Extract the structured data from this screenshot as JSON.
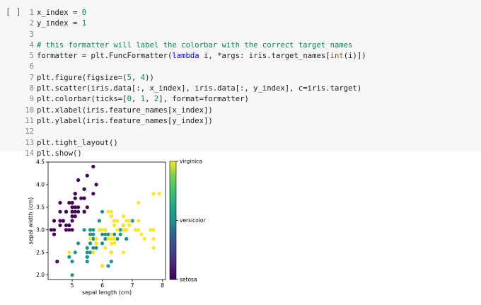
{
  "cell": {
    "run_button_label": "[ ]",
    "lines": [
      {
        "n": "1",
        "parts": [
          {
            "t": "x_index = "
          },
          {
            "t": "0",
            "c": "num"
          }
        ]
      },
      {
        "n": "2",
        "parts": [
          {
            "t": "y_index = "
          },
          {
            "t": "1",
            "c": "num"
          }
        ]
      },
      {
        "n": "3",
        "parts": []
      },
      {
        "n": "4",
        "parts": [
          {
            "t": "# this formatter will label the colorbar with the correct target names",
            "c": "cm"
          }
        ]
      },
      {
        "n": "5",
        "parts": [
          {
            "t": "formatter = plt.FuncFormatter("
          },
          {
            "t": "lambda",
            "c": "kw"
          },
          {
            "t": " i, *args: iris.target_names["
          },
          {
            "t": "int",
            "c": "fn"
          },
          {
            "t": "(i)])"
          }
        ]
      },
      {
        "n": "6",
        "parts": []
      },
      {
        "n": "7",
        "parts": [
          {
            "t": "plt.figure(figsize=("
          },
          {
            "t": "5",
            "c": "num"
          },
          {
            "t": ", "
          },
          {
            "t": "4",
            "c": "num"
          },
          {
            "t": "))"
          }
        ]
      },
      {
        "n": "8",
        "parts": [
          {
            "t": "plt.scatter(iris.data[:, x_index], iris.data[:, y_index], c=iris.target)"
          }
        ]
      },
      {
        "n": "9",
        "parts": [
          {
            "t": "plt.colorbar(ticks=["
          },
          {
            "t": "0",
            "c": "num"
          },
          {
            "t": ", "
          },
          {
            "t": "1",
            "c": "num"
          },
          {
            "t": ", "
          },
          {
            "t": "2",
            "c": "num"
          },
          {
            "t": "], format=formatter)"
          }
        ]
      },
      {
        "n": "10",
        "parts": [
          {
            "t": "plt.xlabel(iris.feature_names[x_index])"
          }
        ]
      },
      {
        "n": "11",
        "parts": [
          {
            "t": "plt.ylabel(iris.feature_names[y_index])"
          }
        ]
      },
      {
        "n": "12",
        "parts": []
      },
      {
        "n": "13",
        "parts": [
          {
            "t": "plt.tight_layout()"
          }
        ]
      },
      {
        "n": "14",
        "parts": [
          {
            "t": "plt.show()"
          }
        ]
      }
    ]
  },
  "colors": {
    "setosa": "#440154",
    "versicolor": "#21918c",
    "virginica": "#fde725"
  },
  "chart_data": {
    "type": "scatter",
    "xlabel": "sepal length (cm)",
    "ylabel": "sepal width (cm)",
    "xlim": [
      4.2,
      8.1
    ],
    "ylim": [
      1.9,
      4.5
    ],
    "xticks": [
      "5",
      "6",
      "7",
      "8"
    ],
    "xtick_values": [
      5,
      6,
      7,
      8
    ],
    "yticks": [
      "2.0",
      "2.5",
      "3.0",
      "3.5",
      "4.0",
      "4.5"
    ],
    "ytick_values": [
      2.0,
      2.5,
      3.0,
      3.5,
      4.0,
      4.5
    ],
    "colorbar": {
      "ticks": [
        0,
        1,
        2
      ],
      "labels": [
        "setosa",
        "versicolor",
        "virginica"
      ]
    },
    "series": [
      {
        "name": "setosa",
        "class": 0,
        "points": [
          [
            5.1,
            3.5
          ],
          [
            4.9,
            3.0
          ],
          [
            4.7,
            3.2
          ],
          [
            4.6,
            3.1
          ],
          [
            5.0,
            3.6
          ],
          [
            5.4,
            3.9
          ],
          [
            4.6,
            3.4
          ],
          [
            5.0,
            3.4
          ],
          [
            4.4,
            2.9
          ],
          [
            4.9,
            3.1
          ],
          [
            5.4,
            3.7
          ],
          [
            4.8,
            3.4
          ],
          [
            4.8,
            3.0
          ],
          [
            4.3,
            3.0
          ],
          [
            5.8,
            4.0
          ],
          [
            5.7,
            4.4
          ],
          [
            5.4,
            3.9
          ],
          [
            5.1,
            3.5
          ],
          [
            5.7,
            3.8
          ],
          [
            5.1,
            3.8
          ],
          [
            5.4,
            3.4
          ],
          [
            5.1,
            3.7
          ],
          [
            4.6,
            3.6
          ],
          [
            5.1,
            3.3
          ],
          [
            4.8,
            3.4
          ],
          [
            5.0,
            3.0
          ],
          [
            5.0,
            3.4
          ],
          [
            5.2,
            3.5
          ],
          [
            5.2,
            3.4
          ],
          [
            4.7,
            3.2
          ],
          [
            4.8,
            3.1
          ],
          [
            5.4,
            3.4
          ],
          [
            5.2,
            4.1
          ],
          [
            5.5,
            4.2
          ],
          [
            4.9,
            3.1
          ],
          [
            5.0,
            3.2
          ],
          [
            5.5,
            3.5
          ],
          [
            4.9,
            3.6
          ],
          [
            4.4,
            3.0
          ],
          [
            5.1,
            3.4
          ],
          [
            5.0,
            3.5
          ],
          [
            4.5,
            2.3
          ],
          [
            4.4,
            3.2
          ],
          [
            5.0,
            3.5
          ],
          [
            5.1,
            3.8
          ],
          [
            4.8,
            3.0
          ],
          [
            5.1,
            3.8
          ],
          [
            4.6,
            3.2
          ],
          [
            5.3,
            3.7
          ],
          [
            5.0,
            3.3
          ]
        ]
      },
      {
        "name": "versicolor",
        "class": 1,
        "points": [
          [
            7.0,
            3.2
          ],
          [
            6.4,
            3.2
          ],
          [
            6.9,
            3.1
          ],
          [
            5.5,
            2.3
          ],
          [
            6.5,
            2.8
          ],
          [
            5.7,
            2.8
          ],
          [
            6.3,
            3.3
          ],
          [
            4.9,
            2.4
          ],
          [
            6.6,
            2.9
          ],
          [
            5.2,
            2.7
          ],
          [
            5.0,
            2.0
          ],
          [
            5.9,
            3.0
          ],
          [
            6.0,
            2.2
          ],
          [
            6.1,
            2.9
          ],
          [
            5.6,
            2.9
          ],
          [
            6.7,
            3.1
          ],
          [
            5.6,
            3.0
          ],
          [
            5.8,
            2.7
          ],
          [
            6.2,
            2.2
          ],
          [
            5.6,
            2.5
          ],
          [
            5.9,
            3.2
          ],
          [
            6.1,
            2.8
          ],
          [
            6.3,
            2.5
          ],
          [
            6.1,
            2.8
          ],
          [
            6.4,
            2.9
          ],
          [
            6.6,
            3.0
          ],
          [
            6.8,
            2.8
          ],
          [
            6.7,
            3.0
          ],
          [
            6.0,
            2.9
          ],
          [
            5.7,
            2.6
          ],
          [
            5.5,
            2.4
          ],
          [
            5.5,
            2.4
          ],
          [
            5.8,
            2.7
          ],
          [
            6.0,
            2.7
          ],
          [
            5.4,
            3.0
          ],
          [
            6.0,
            3.4
          ],
          [
            6.7,
            3.1
          ],
          [
            6.3,
            2.3
          ],
          [
            5.6,
            3.0
          ],
          [
            5.5,
            2.5
          ],
          [
            5.5,
            2.6
          ],
          [
            6.1,
            3.0
          ],
          [
            5.8,
            2.6
          ],
          [
            5.0,
            2.3
          ],
          [
            5.6,
            2.7
          ],
          [
            5.7,
            3.0
          ],
          [
            5.7,
            2.9
          ],
          [
            6.2,
            2.9
          ],
          [
            5.1,
            2.5
          ],
          [
            5.7,
            2.8
          ]
        ]
      },
      {
        "name": "virginica",
        "class": 2,
        "points": [
          [
            6.3,
            3.3
          ],
          [
            5.8,
            2.7
          ],
          [
            7.1,
            3.0
          ],
          [
            6.3,
            2.9
          ],
          [
            6.5,
            3.0
          ],
          [
            7.6,
            3.0
          ],
          [
            4.9,
            2.5
          ],
          [
            7.3,
            2.9
          ],
          [
            6.7,
            2.5
          ],
          [
            7.2,
            3.6
          ],
          [
            6.5,
            3.2
          ],
          [
            6.4,
            2.7
          ],
          [
            6.8,
            3.0
          ],
          [
            5.7,
            2.5
          ],
          [
            5.8,
            2.8
          ],
          [
            6.4,
            3.2
          ],
          [
            6.5,
            3.0
          ],
          [
            7.7,
            3.8
          ],
          [
            7.7,
            2.6
          ],
          [
            6.0,
            2.2
          ],
          [
            6.9,
            3.2
          ],
          [
            5.6,
            2.8
          ],
          [
            7.7,
            2.8
          ],
          [
            6.3,
            2.7
          ],
          [
            6.7,
            3.3
          ],
          [
            7.2,
            3.2
          ],
          [
            6.2,
            2.8
          ],
          [
            6.1,
            3.0
          ],
          [
            6.4,
            2.8
          ],
          [
            7.2,
            3.0
          ],
          [
            7.4,
            2.8
          ],
          [
            7.9,
            3.8
          ],
          [
            6.4,
            2.8
          ],
          [
            6.3,
            2.8
          ],
          [
            6.1,
            2.6
          ],
          [
            7.7,
            3.0
          ],
          [
            6.3,
            3.4
          ],
          [
            6.4,
            3.1
          ],
          [
            6.0,
            3.0
          ],
          [
            6.9,
            3.1
          ],
          [
            6.7,
            3.1
          ],
          [
            6.9,
            3.1
          ],
          [
            5.8,
            2.7
          ],
          [
            6.8,
            3.2
          ],
          [
            6.7,
            3.3
          ],
          [
            6.7,
            3.0
          ],
          [
            6.3,
            2.5
          ],
          [
            6.5,
            3.0
          ],
          [
            6.2,
            3.4
          ],
          [
            5.9,
            3.0
          ]
        ]
      }
    ]
  }
}
